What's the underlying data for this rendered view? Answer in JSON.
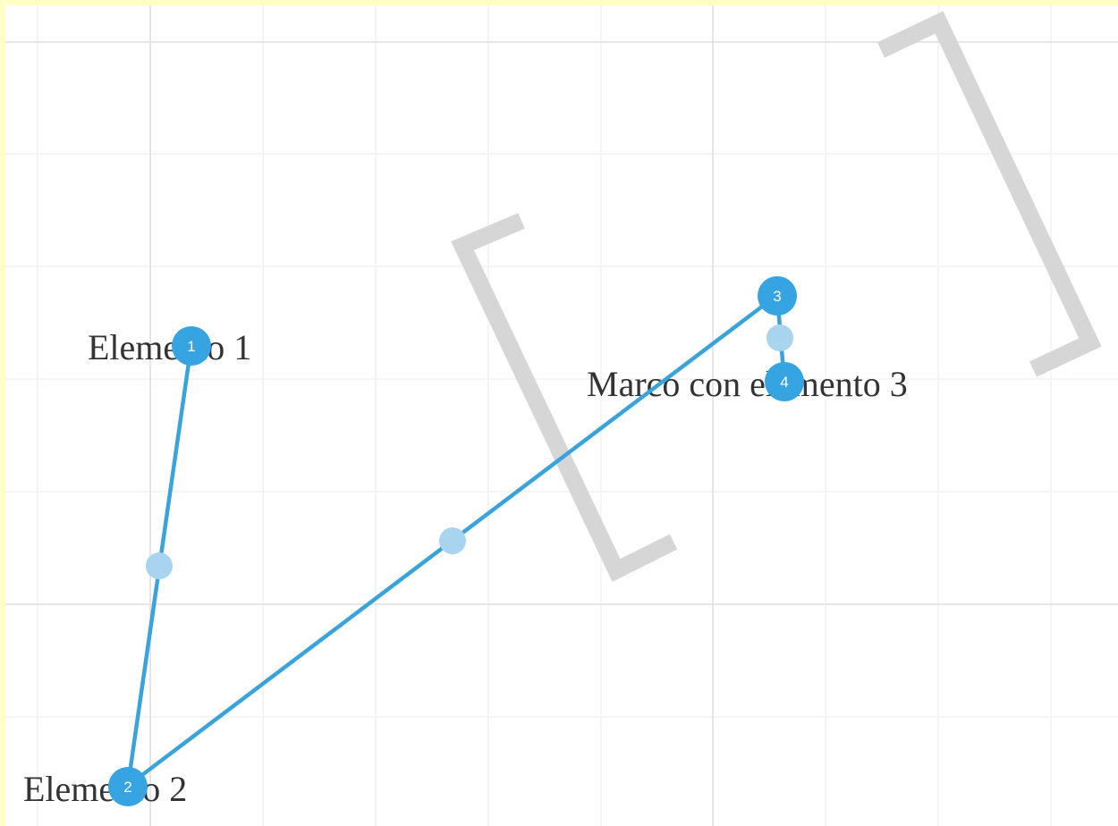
{
  "labels": {
    "element1": "Elemento 1",
    "element2": "Elemento 2",
    "frame": "Marco con elemento 3"
  },
  "points": {
    "p1": "1",
    "p2": "2",
    "p3": "3",
    "p4": "4"
  },
  "colors": {
    "line": "#3aa3dc",
    "point": "#35a4e0",
    "midpoint": "#a9d4f0",
    "bracket": "#d6d6d6",
    "grid_minor": "#f2f2f2",
    "grid_major": "#dedede",
    "page_border": "#ffffc8"
  }
}
